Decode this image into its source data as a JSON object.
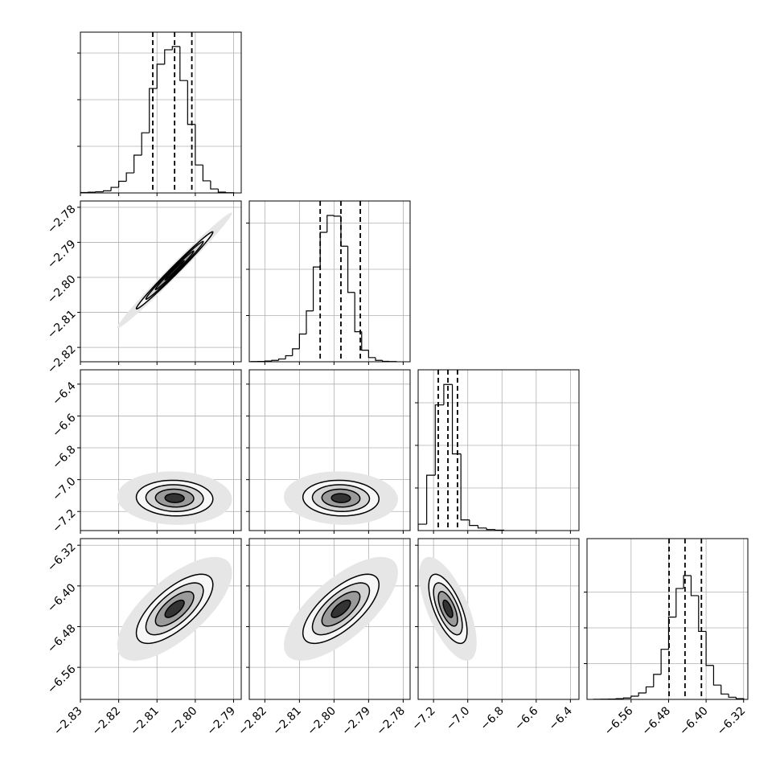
{
  "chart_data": {
    "type": "corner",
    "contour_levels": [
      3,
      2,
      1.5,
      1,
      0.5
    ],
    "contour_fills": [
      "#e6e6e6",
      "#f7f7f7",
      "#d4d4d4",
      "#9a9a9a",
      "#333333"
    ],
    "grid": true,
    "params": [
      {
        "xlim": [
          -2.83,
          -2.788
        ],
        "mean": -2.8054,
        "std": 0.005,
        "xticks": [
          {
            "value": -2.83,
            "label": "−2.83"
          },
          {
            "value": -2.82,
            "label": "−2.82"
          },
          {
            "value": -2.81,
            "label": "−2.81"
          },
          {
            "value": -2.8,
            "label": "−2.80"
          },
          {
            "value": -2.79,
            "label": "−2.79"
          }
        ]
      },
      {
        "xlim": [
          -2.8245,
          -2.778
        ],
        "ylim": [
          -2.8241,
          -2.7782
        ],
        "mean": -2.798,
        "std": 0.0055,
        "xticks": [
          {
            "value": -2.82,
            "label": "−2.82"
          },
          {
            "value": -2.81,
            "label": "−2.81"
          },
          {
            "value": -2.8,
            "label": "−2.80"
          },
          {
            "value": -2.79,
            "label": "−2.79"
          },
          {
            "value": -2.78,
            "label": "−2.78"
          }
        ],
        "yticks": [
          {
            "value": -2.78,
            "label": "−2.78"
          },
          {
            "value": -2.79,
            "label": "−2.79"
          },
          {
            "value": -2.8,
            "label": "−2.80"
          },
          {
            "value": -2.81,
            "label": "−2.81"
          },
          {
            "value": -2.82,
            "label": "−2.82"
          }
        ]
      },
      {
        "xlim": [
          -7.29,
          -6.35
        ],
        "ylim": [
          -7.32,
          -6.31
        ],
        "mean": -7.116,
        "std": 0.056,
        "xticks": [
          {
            "value": -7.2,
            "label": "−7.2"
          },
          {
            "value": -7.0,
            "label": "−7.0"
          },
          {
            "value": -6.8,
            "label": "−6.8"
          },
          {
            "value": -6.6,
            "label": "−6.6"
          },
          {
            "value": -6.4,
            "label": "−6.4"
          }
        ],
        "yticks": [
          {
            "value": -6.4,
            "label": "−6.4"
          },
          {
            "value": -6.6,
            "label": "−6.6"
          },
          {
            "value": -6.8,
            "label": "−6.8"
          },
          {
            "value": -7.0,
            "label": "−7.0"
          },
          {
            "value": -7.2,
            "label": "−7.2"
          }
        ]
      },
      {
        "xlim": [
          -6.654,
          -6.311
        ],
        "ylim": [
          -6.623,
          -6.307
        ],
        "mean": -6.445,
        "std": 0.034,
        "xticks": [
          {
            "value": -6.56,
            "label": "−6.56"
          },
          {
            "value": -6.48,
            "label": "−6.48"
          },
          {
            "value": -6.4,
            "label": "−6.40"
          },
          {
            "value": -6.32,
            "label": "−6.32"
          }
        ],
        "yticks": [
          {
            "value": -6.32,
            "label": "−6.32"
          },
          {
            "value": -6.4,
            "label": "−6.40"
          },
          {
            "value": -6.48,
            "label": "−6.48"
          },
          {
            "value": -6.56,
            "label": "−6.56"
          }
        ]
      }
    ],
    "hists": [
      {
        "bins": [
          -2.83,
          -2.828,
          -2.826,
          -2.824,
          -2.822,
          -2.82,
          -2.818,
          -2.816,
          -2.814,
          -2.812,
          -2.81,
          -2.808,
          -2.806,
          -2.804,
          -2.802,
          -2.8,
          -2.798,
          -2.796,
          -2.794,
          -2.792,
          -2.79
        ],
        "counts": [
          8,
          15,
          25,
          45,
          120,
          250,
          430,
          810,
          1290,
          2240,
          2760,
          3070,
          3140,
          2410,
          1470,
          600,
          260,
          85,
          17,
          5
        ],
        "ylim": [
          0,
          3448
        ],
        "yticks": [
          1000,
          2000,
          3000
        ],
        "quantiles": [
          -2.8111,
          -2.8054,
          -2.8009
        ]
      },
      {
        "bins": [
          -2.824,
          -2.822,
          -2.82,
          -2.818,
          -2.816,
          -2.814,
          -2.812,
          -2.81,
          -2.808,
          -2.806,
          -2.804,
          -2.802,
          -2.8,
          -2.798,
          -2.796,
          -2.794,
          -2.792,
          -2.79,
          -2.788,
          -2.786,
          -2.784,
          -2.782
        ],
        "counts": [
          5,
          8,
          15,
          30,
          60,
          130,
          280,
          600,
          1100,
          2050,
          2800,
          3165,
          3150,
          2500,
          1500,
          650,
          250,
          90,
          30,
          10,
          5
        ],
        "ylim": [
          0,
          3478
        ],
        "yticks": [
          1000,
          2000,
          3000
        ],
        "quantiles": [
          -2.804,
          -2.798,
          -2.7924
        ]
      },
      {
        "bins": [
          -7.29,
          -7.24,
          -7.19,
          -7.14,
          -7.09,
          -7.04,
          -6.99,
          -6.94,
          -6.89,
          -6.84,
          -6.79
        ],
        "counts": [
          150,
          1300,
          2950,
          3430,
          1800,
          250,
          120,
          60,
          25,
          10
        ],
        "ylim": [
          0,
          3774
        ],
        "yticks": [
          1000,
          2000,
          3000
        ],
        "quantiles": [
          -7.1725,
          -7.116,
          -7.06
        ]
      },
      {
        "bins": [
          -6.64,
          -6.624,
          -6.608,
          -6.592,
          -6.576,
          -6.56,
          -6.544,
          -6.528,
          -6.512,
          -6.496,
          -6.48,
          -6.464,
          -6.448,
          -6.432,
          -6.416,
          -6.4,
          -6.384,
          -6.368,
          -6.352,
          -6.336,
          -6.32
        ],
        "counts": [
          3,
          5,
          10,
          20,
          40,
          90,
          180,
          350,
          700,
          1400,
          2300,
          3100,
          3460,
          2900,
          1900,
          950,
          400,
          150,
          60,
          20
        ],
        "ylim": [
          0,
          4494
        ],
        "yticks": [
          1000,
          2000,
          3000
        ],
        "quantiles": [
          -6.479,
          -6.445,
          -6.41
        ]
      }
    ],
    "pairs": [
      {
        "params": [
          0,
          1
        ],
        "corr": 0.99
      },
      {
        "params": [
          0,
          2
        ],
        "corr": -0.05
      },
      {
        "params": [
          1,
          2
        ],
        "corr": -0.05
      },
      {
        "params": [
          0,
          3
        ],
        "corr": 0.7
      },
      {
        "params": [
          1,
          3
        ],
        "corr": 0.7
      },
      {
        "params": [
          2,
          3
        ],
        "corr": -0.65
      }
    ]
  }
}
